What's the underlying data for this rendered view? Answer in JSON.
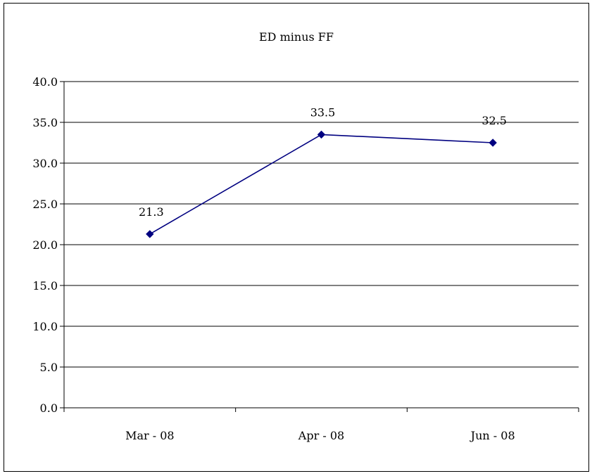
{
  "chart_data": {
    "type": "line",
    "title": "ED minus FF",
    "xlabel": "",
    "ylabel": "",
    "categories": [
      "Mar - 08",
      "Apr - 08",
      "Jun - 08"
    ],
    "series": [
      {
        "values": [
          21.3,
          33.5,
          32.5
        ],
        "color": "#000080",
        "marker": "diamond",
        "data_labels": [
          "21.3",
          "33.5",
          "32.5"
        ]
      }
    ],
    "ylim": [
      0,
      40
    ],
    "y_ticks": [
      "0.0",
      "5.0",
      "10.0",
      "15.0",
      "20.0",
      "25.0",
      "30.0",
      "35.0",
      "40.0"
    ],
    "grid": true,
    "legend": "none"
  }
}
